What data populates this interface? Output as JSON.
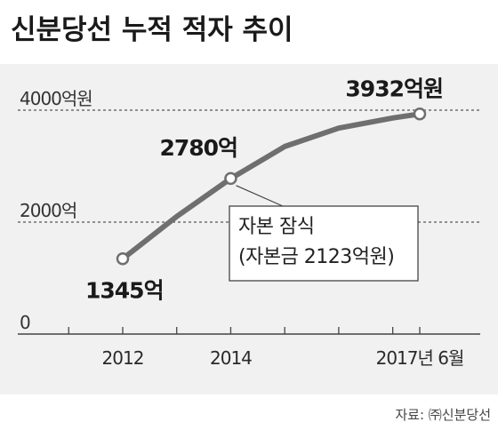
{
  "title": "신분당선 누적 적자 추이",
  "source": "자료: ㈜신분당선",
  "colors": {
    "background": "#ffffff",
    "plot_background": "#f1f1f1",
    "line": "#6f6f6f",
    "point_fill": "#ffffff",
    "text": "#1a1a1a"
  },
  "chart_data": {
    "type": "line",
    "title": "신분당선 누적 적자 추이",
    "xlabel": "",
    "ylabel": "",
    "x_ticks": [
      {
        "value": 2012,
        "label": "2012"
      },
      {
        "value": 2014,
        "label": "2014"
      },
      {
        "value": 2017.5,
        "label": "2017년 6월"
      }
    ],
    "x_minor_ticks": [
      2011,
      2012,
      2013,
      2014,
      2015,
      2016,
      2017,
      2017.5
    ],
    "y_ticks": [
      {
        "value": 0,
        "label": "0"
      },
      {
        "value": 2000,
        "label": "2000억"
      },
      {
        "value": 4000,
        "label": "4000억원"
      }
    ],
    "xlim": [
      2011,
      2017.75
    ],
    "ylim": [
      0,
      4000
    ],
    "grid": "dashed horizontal at y ticks",
    "series": [
      {
        "values": [
          {
            "x": 2012,
            "y": 1345
          },
          {
            "x": 2013,
            "y": 2100
          },
          {
            "x": 2014,
            "y": 2780
          },
          {
            "x": 2015,
            "y": 3350
          },
          {
            "x": 2016,
            "y": 3680
          },
          {
            "x": 2017,
            "y": 3860
          },
          {
            "x": 2017.5,
            "y": 3932
          }
        ]
      }
    ],
    "markers": [
      {
        "x": 2012,
        "y": 1345,
        "label": "1345억"
      },
      {
        "x": 2014,
        "y": 2780,
        "label": "2780억"
      },
      {
        "x": 2017.5,
        "y": 3932,
        "label": "3932억원"
      }
    ],
    "annotation": {
      "x": 2014,
      "y": 2780,
      "lines": [
        "자본 잠식",
        "(자본금 2123억원)"
      ]
    }
  }
}
